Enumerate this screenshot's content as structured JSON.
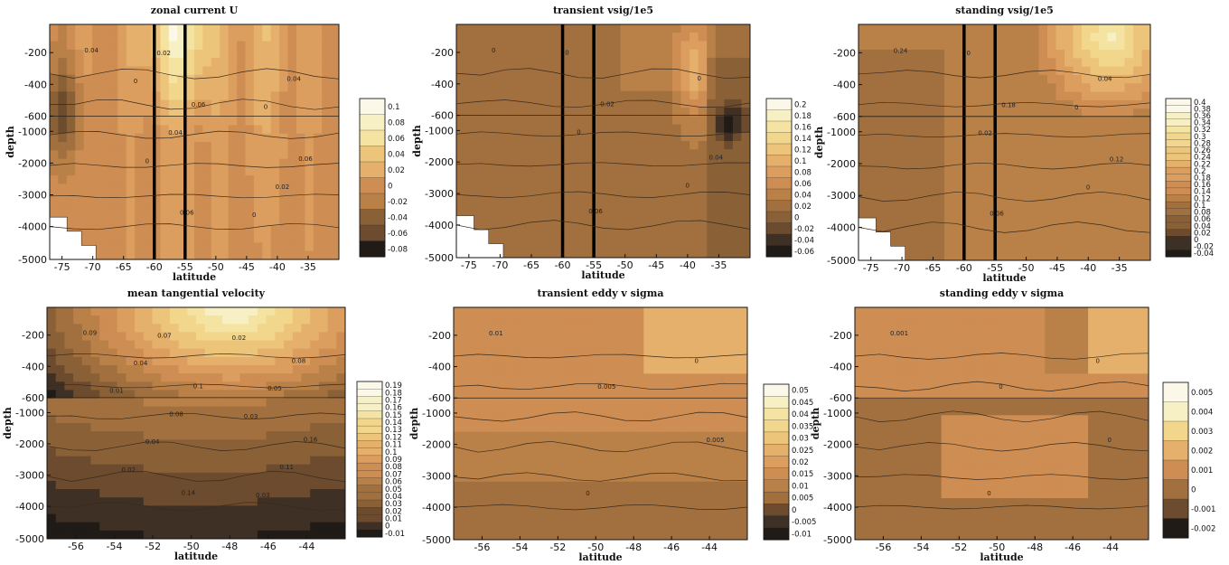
{
  "chart_data": [
    {
      "type": "contour",
      "title": "zonal current U",
      "xlabel": "latitude",
      "ylabel": "depth",
      "xticks": [
        "-75",
        "-70",
        "-65",
        "-60",
        "-55",
        "-50",
        "-45",
        "-40",
        "-35"
      ],
      "yticks": [
        "-200",
        "-400",
        "-600",
        "-1000",
        "-2000",
        "-3000",
        "-4000",
        "-5000"
      ],
      "xlim": [
        -77,
        -30
      ],
      "vertical_lines_at_latitude": [
        -60,
        -55
      ],
      "colorbar_labels": [
        "0.1",
        "0.08",
        "0.06",
        "0.04",
        "0.02",
        "0",
        "-0.02",
        "-0.04",
        "-0.06",
        "-0.08"
      ],
      "contour_labels": [
        "0.04",
        "0.06",
        "0.06",
        "0.06",
        "0.04",
        "0.04",
        "0.02",
        "0.02",
        "0",
        "0",
        "0",
        "0"
      ]
    },
    {
      "type": "contour",
      "title": "transient vsig/1e5",
      "xlabel": "latitude",
      "ylabel": "depth",
      "xticks": [
        "-75",
        "-70",
        "-65",
        "-60",
        "-55",
        "-50",
        "-45",
        "-40",
        "-35"
      ],
      "yticks": [
        "-200",
        "-400",
        "-600",
        "-1000",
        "-2000",
        "-3000",
        "-4000",
        "-5000"
      ],
      "xlim": [
        -77,
        -30
      ],
      "vertical_lines_at_latitude": [
        -60,
        -55
      ],
      "colorbar_labels": [
        "0.2",
        "0.18",
        "0.16",
        "0.14",
        "0.12",
        "0.1",
        "0.08",
        "0.06",
        "0.04",
        "0.02",
        "0",
        "-0.02",
        "-0.04",
        "-0.06"
      ],
      "contour_labels": [
        "0",
        "0.02",
        "0.04",
        "0.06",
        "0",
        "0",
        "0",
        "0"
      ]
    },
    {
      "type": "contour",
      "title": "standing vsig/1e5",
      "xlabel": "latitude",
      "ylabel": "depth",
      "xticks": [
        "-75",
        "-70",
        "-65",
        "-60",
        "-55",
        "-50",
        "-45",
        "-40",
        "-35"
      ],
      "yticks": [
        "-200",
        "-400",
        "-600",
        "-1000",
        "-2000",
        "-3000",
        "-4000",
        "-5000"
      ],
      "xlim": [
        -77,
        -30
      ],
      "vertical_lines_at_latitude": [
        -60,
        -55
      ],
      "colorbar_labels": [
        "0.4",
        "0.38",
        "0.36",
        "0.34",
        "0.32",
        "0.3",
        "0.28",
        "0.26",
        "0.24",
        "0.22",
        "0.2",
        "0.18",
        "0.16",
        "0.14",
        "0.12",
        "0.1",
        "0.08",
        "0.06",
        "0.04",
        "0.02",
        "0",
        "-0.02",
        "-0.04"
      ],
      "contour_labels": [
        "0.24",
        "0.18",
        "0.12",
        "0.06",
        "0.04",
        "0.02",
        "0",
        "0",
        "0"
      ]
    },
    {
      "type": "contour",
      "title": "mean tangential velocity",
      "xlabel": "latitude",
      "ylabel": "depth",
      "xticks": [
        "-56",
        "-54",
        "-52",
        "-50",
        "-48",
        "-46",
        "-44"
      ],
      "yticks": [
        "-200",
        "-400",
        "-600",
        "-1000",
        "-2000",
        "-3000",
        "-4000",
        "-5000"
      ],
      "xlim": [
        -57.5,
        -42
      ],
      "colorbar_labels": [
        "0.19",
        "0.18",
        "0.17",
        "0.16",
        "0.15",
        "0.14",
        "0.13",
        "0.12",
        "0.11",
        "0.1",
        "0.09",
        "0.08",
        "0.07",
        "0.06",
        "0.05",
        "0.04",
        "0.03",
        "0.02",
        "0.01",
        "0",
        "-0.01"
      ],
      "contour_labels": [
        "0.09",
        "0.1",
        "0.16",
        "0.14",
        "0.08",
        "0.08",
        "0.11",
        "0.07",
        "0.05",
        "0.04",
        "0.03",
        "0.04",
        "0.03",
        "0.02",
        "0.02",
        "0.01"
      ]
    },
    {
      "type": "contour",
      "title": "transient eddy v sigma",
      "xlabel": "latitude",
      "ylabel": "depth",
      "xticks": [
        "-56",
        "-54",
        "-52",
        "-50",
        "-48",
        "-46",
        "-44"
      ],
      "yticks": [
        "-200",
        "-400",
        "-600",
        "-1000",
        "-2000",
        "-3000",
        "-4000",
        "-5000"
      ],
      "xlim": [
        -57.5,
        -42
      ],
      "colorbar_labels": [
        "0.05",
        "0.045",
        "0.04",
        "0.035",
        "0.03",
        "0.025",
        "0.02",
        "0.015",
        "0.01",
        "0.005",
        "0",
        "-0.005",
        "-0.01"
      ],
      "contour_labels": [
        "0.01",
        "0.005",
        "0.005",
        "0",
        "0"
      ]
    },
    {
      "type": "contour",
      "title": "standing eddy v sigma",
      "xlabel": "latitude",
      "ylabel": "depth",
      "xticks": [
        "-56",
        "-54",
        "-52",
        "-50",
        "-48",
        "-46",
        "-44"
      ],
      "yticks": [
        "-200",
        "-400",
        "-600",
        "-1000",
        "-2000",
        "-3000",
        "-4000",
        "-5000"
      ],
      "xlim": [
        -57.5,
        -42
      ],
      "colorbar_labels": [
        "0.005",
        "0.004",
        "0.003",
        "0.002",
        "0.001",
        "0",
        "-0.001",
        "-0.002"
      ],
      "contour_labels": [
        "0.001",
        "0",
        "0",
        "0",
        "0"
      ]
    }
  ],
  "colors": {
    "palette_light_to_dark": [
      "#fbf8ea",
      "#f7f0c4",
      "#f4e3a1",
      "#f1d68c",
      "#ecc47a",
      "#e5b06b",
      "#dc9e5e",
      "#ce8d52",
      "#b98048",
      "#a2703f",
      "#8a6037",
      "#6c4b2e",
      "#3e3024",
      "#201b16"
    ],
    "contour_line": "#3a2a1a"
  }
}
